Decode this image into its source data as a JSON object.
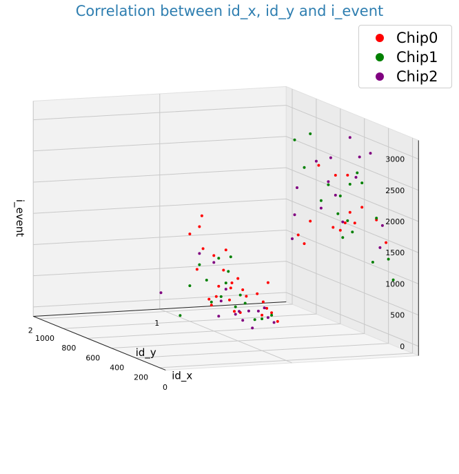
{
  "chart_data": {
    "type": "scatter",
    "projection": "3d",
    "title": "Correlation between id_x, id_y and i_event",
    "xlabel": "id_x",
    "ylabel": "id_y",
    "zlabel": "i_event",
    "xticks": [
      0,
      200,
      400,
      600,
      800,
      1000
    ],
    "yticks": [
      1,
      2
    ],
    "zticks": [
      0,
      500,
      1000,
      1500,
      2000,
      2500,
      3000
    ],
    "xlim": [
      -50,
      1050
    ],
    "ylim": [
      0,
      2
    ],
    "zlim": [
      -150,
      3300
    ],
    "grid": true,
    "legend_position": "top-right",
    "series": [
      {
        "name": "Chip0",
        "color": "#ff0000",
        "points": [
          [
            70,
            1,
            420
          ],
          [
            120,
            1,
            520
          ],
          [
            160,
            1,
            560
          ],
          [
            200,
            1,
            420
          ],
          [
            150,
            1,
            980
          ],
          [
            220,
            0,
            1450
          ],
          [
            190,
            1,
            640
          ],
          [
            240,
            1,
            730
          ],
          [
            300,
            0,
            1750
          ],
          [
            330,
            1,
            620
          ],
          [
            360,
            1,
            700
          ],
          [
            400,
            1,
            850
          ],
          [
            420,
            0,
            1860
          ],
          [
            450,
            1,
            740
          ],
          [
            470,
            1,
            450
          ],
          [
            480,
            0,
            1560
          ],
          [
            500,
            1,
            1230
          ],
          [
            520,
            1,
            890
          ],
          [
            540,
            0,
            2280
          ],
          [
            560,
            1,
            600
          ],
          [
            580,
            1,
            420
          ],
          [
            600,
            1,
            1060
          ],
          [
            620,
            1,
            250
          ],
          [
            640,
            1,
            330
          ],
          [
            660,
            0,
            1350
          ],
          [
            690,
            1,
            1100
          ],
          [
            720,
            1,
            1430
          ],
          [
            740,
            1,
            730
          ],
          [
            780,
            0,
            2250
          ],
          [
            800,
            1,
            1250
          ],
          [
            520,
            0,
            1700
          ],
          [
            560,
            0,
            1500
          ],
          [
            600,
            0,
            1350
          ],
          [
            460,
            1,
            650
          ],
          [
            700,
            1,
            1620
          ],
          [
            850,
            0,
            1300
          ],
          [
            900,
            0,
            900
          ],
          [
            950,
            0,
            1000
          ],
          [
            430,
            1,
            300
          ],
          [
            380,
            1,
            320
          ],
          [
            640,
            0,
            2200
          ]
        ]
      },
      {
        "name": "Chip1",
        "color": "#008000",
        "points": [
          [
            120,
            1,
            480
          ],
          [
            200,
            1,
            360
          ],
          [
            260,
            1,
            300
          ],
          [
            300,
            0,
            1780
          ],
          [
            340,
            1,
            500
          ],
          [
            380,
            1,
            600
          ],
          [
            420,
            1,
            380
          ],
          [
            460,
            0,
            2380
          ],
          [
            480,
            1,
            900
          ],
          [
            500,
            1,
            700
          ],
          [
            520,
            0,
            2150
          ],
          [
            540,
            1,
            450
          ],
          [
            560,
            1,
            1050
          ],
          [
            600,
            0,
            1900
          ],
          [
            620,
            1,
            300
          ],
          [
            660,
            1,
            620
          ],
          [
            700,
            0,
            2000
          ],
          [
            720,
            1,
            820
          ],
          [
            760,
            0,
            1700
          ],
          [
            800,
            1,
            420
          ],
          [
            850,
            0,
            2700
          ],
          [
            900,
            0,
            2120
          ],
          [
            880,
            1,
            -120
          ],
          [
            540,
            0,
            1550
          ],
          [
            580,
            0,
            1250
          ],
          [
            500,
            0,
            1400
          ],
          [
            200,
            0,
            1200
          ],
          [
            160,
            0,
            900
          ],
          [
            420,
            0,
            2250
          ],
          [
            460,
            1,
            1150
          ],
          [
            330,
            0,
            1050
          ],
          [
            620,
            0,
            1600
          ],
          [
            980,
            0,
            2500
          ]
        ]
      },
      {
        "name": "Chip2",
        "color": "#800080",
        "points": [
          [
            100,
            1,
            380
          ],
          [
            150,
            1,
            420
          ],
          [
            180,
            1,
            550
          ],
          [
            230,
            1,
            460
          ],
          [
            270,
            0,
            1330
          ],
          [
            310,
            1,
            400
          ],
          [
            350,
            0,
            2780
          ],
          [
            390,
            1,
            330
          ],
          [
            420,
            1,
            260
          ],
          [
            440,
            0,
            2650
          ],
          [
            470,
            0,
            2300
          ],
          [
            500,
            1,
            600
          ],
          [
            520,
            0,
            2900
          ],
          [
            540,
            1,
            380
          ],
          [
            580,
            0,
            1500
          ],
          [
            600,
            1,
            950
          ],
          [
            640,
            0,
            1880
          ],
          [
            680,
            0,
            2450
          ],
          [
            700,
            0,
            2050
          ],
          [
            720,
            1,
            1000
          ],
          [
            760,
            0,
            1580
          ],
          [
            800,
            0,
            2300
          ],
          [
            960,
            0,
            1750
          ],
          [
            980,
            0,
            1300
          ],
          [
            1000,
            0,
            900
          ],
          [
            1040,
            1,
            120
          ],
          [
            280,
            1,
            150
          ],
          [
            360,
            1,
            210
          ],
          [
            560,
            1,
            120
          ],
          [
            250,
            0,
            1700
          ]
        ]
      }
    ]
  }
}
